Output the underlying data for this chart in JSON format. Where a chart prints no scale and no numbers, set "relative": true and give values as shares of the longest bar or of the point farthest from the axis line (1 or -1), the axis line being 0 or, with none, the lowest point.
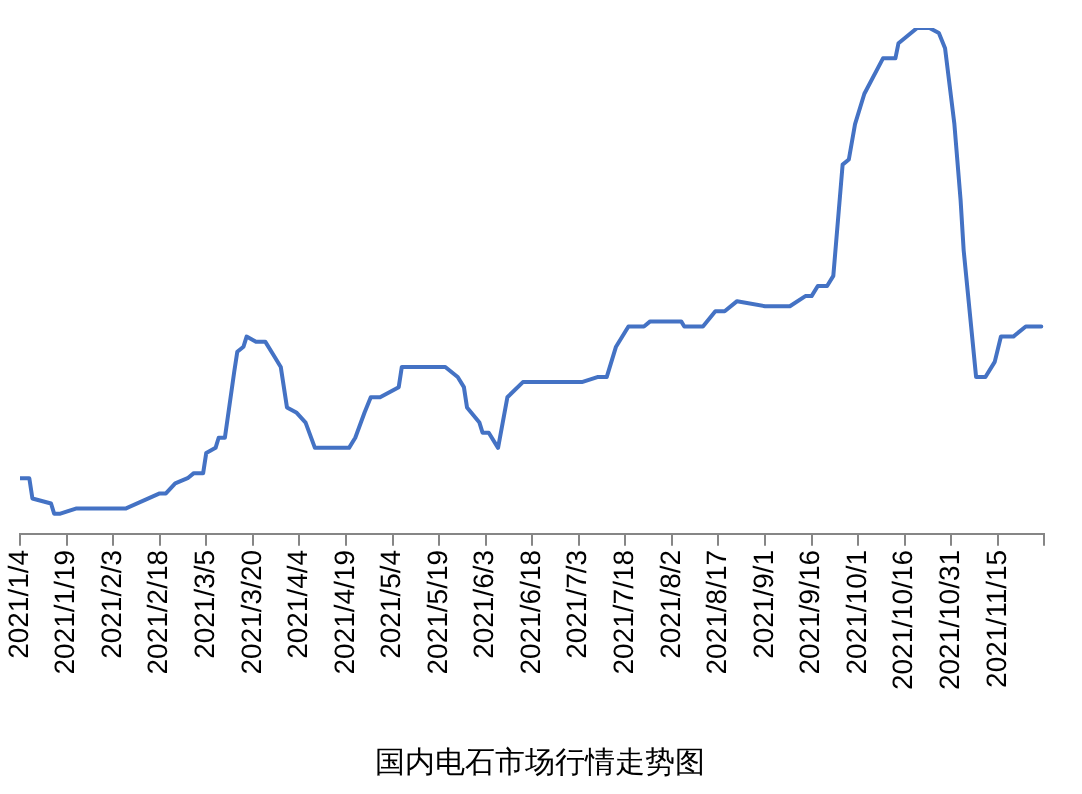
{
  "chart_data": {
    "type": "line",
    "title": "国内电石市场行情走势图",
    "relative": true,
    "color": "#4472c4",
    "marker": "none",
    "line_style": "solid",
    "grid": false,
    "legend": false,
    "x": [
      "2021-01-04",
      "2021-01-07",
      "2021-01-08",
      "2021-01-14",
      "2021-01-15",
      "2021-01-17",
      "2021-01-22",
      "2021-01-28",
      "2021-01-29",
      "2021-02-07",
      "2021-02-18",
      "2021-02-20",
      "2021-02-23",
      "2021-02-27",
      "2021-03-01",
      "2021-03-04",
      "2021-03-05",
      "2021-03-08",
      "2021-03-09",
      "2021-03-11",
      "2021-03-14",
      "2021-03-15",
      "2021-03-17",
      "2021-03-18",
      "2021-03-21",
      "2021-03-24",
      "2021-03-27",
      "2021-03-29",
      "2021-03-31",
      "2021-04-03",
      "2021-04-06",
      "2021-04-09",
      "2021-04-13",
      "2021-04-20",
      "2021-04-22",
      "2021-04-25",
      "2021-04-27",
      "2021-04-30",
      "2021-05-06",
      "2021-05-07",
      "2021-05-21",
      "2021-05-25",
      "2021-05-27",
      "2021-05-28",
      "2021-06-01",
      "2021-06-02",
      "2021-06-04",
      "2021-06-07",
      "2021-06-10",
      "2021-06-15",
      "2021-07-04",
      "2021-07-09",
      "2021-07-12",
      "2021-07-15",
      "2021-07-19",
      "2021-07-24",
      "2021-07-26",
      "2021-08-05",
      "2021-08-06",
      "2021-08-12",
      "2021-08-16",
      "2021-08-19",
      "2021-08-23",
      "2021-09-01",
      "2021-09-09",
      "2021-09-14",
      "2021-09-16",
      "2021-09-18",
      "2021-09-21",
      "2021-09-23",
      "2021-09-26",
      "2021-09-28",
      "2021-09-30",
      "2021-10-03",
      "2021-10-09",
      "2021-10-13",
      "2021-10-14",
      "2021-10-20",
      "2021-10-24",
      "2021-10-27",
      "2021-10-29",
      "2021-11-01",
      "2021-11-03",
      "2021-11-04",
      "2021-11-08",
      "2021-11-11",
      "2021-11-14",
      "2021-11-16",
      "2021-11-20",
      "2021-11-24",
      "2021-11-29"
    ],
    "values": [
      0.11,
      0.11,
      0.07,
      0.06,
      0.04,
      0.04,
      0.05,
      0.05,
      0.05,
      0.05,
      0.08,
      0.08,
      0.1,
      0.11,
      0.12,
      0.12,
      0.16,
      0.17,
      0.19,
      0.19,
      0.32,
      0.36,
      0.37,
      0.39,
      0.38,
      0.38,
      0.35,
      0.33,
      0.25,
      0.24,
      0.22,
      0.17,
      0.17,
      0.17,
      0.19,
      0.24,
      0.27,
      0.27,
      0.29,
      0.33,
      0.33,
      0.31,
      0.29,
      0.25,
      0.22,
      0.2,
      0.2,
      0.17,
      0.27,
      0.3,
      0.3,
      0.31,
      0.31,
      0.37,
      0.41,
      0.41,
      0.42,
      0.42,
      0.41,
      0.41,
      0.44,
      0.44,
      0.46,
      0.45,
      0.45,
      0.47,
      0.47,
      0.49,
      0.49,
      0.51,
      0.73,
      0.74,
      0.81,
      0.87,
      0.94,
      0.94,
      0.97,
      1.0,
      1.0,
      0.99,
      0.96,
      0.81,
      0.66,
      0.56,
      0.31,
      0.31,
      0.34,
      0.39,
      0.39,
      0.41,
      0.41
    ],
    "xlim": [
      "2021-01-04",
      "2021-11-30"
    ],
    "xticks": [
      {
        "value": "2021-01-04",
        "label": "2021/1/4"
      },
      {
        "value": "2021-01-19",
        "label": "2021/1/19"
      },
      {
        "value": "2021-02-03",
        "label": "2021/2/3"
      },
      {
        "value": "2021-02-18",
        "label": "2021/2/18"
      },
      {
        "value": "2021-03-05",
        "label": "2021/3/5"
      },
      {
        "value": "2021-03-20",
        "label": "2021/3/20"
      },
      {
        "value": "2021-04-04",
        "label": "2021/4/4"
      },
      {
        "value": "2021-04-19",
        "label": "2021/4/19"
      },
      {
        "value": "2021-05-04",
        "label": "2021/5/4"
      },
      {
        "value": "2021-05-19",
        "label": "2021/5/19"
      },
      {
        "value": "2021-06-03",
        "label": "2021/6/3"
      },
      {
        "value": "2021-06-18",
        "label": "2021/6/18"
      },
      {
        "value": "2021-07-03",
        "label": "2021/7/3"
      },
      {
        "value": "2021-07-18",
        "label": "2021/7/18"
      },
      {
        "value": "2021-08-02",
        "label": "2021/8/2"
      },
      {
        "value": "2021-08-17",
        "label": "2021/8/17"
      },
      {
        "value": "2021-09-01",
        "label": "2021/9/1"
      },
      {
        "value": "2021-09-16",
        "label": "2021/9/16"
      },
      {
        "value": "2021-10-01",
        "label": "2021/10/1"
      },
      {
        "value": "2021-10-16",
        "label": "2021/10/16"
      },
      {
        "value": "2021-10-31",
        "label": "2021/10/31"
      },
      {
        "value": "2021-11-15",
        "label": "2021/11/15"
      },
      {
        "value": "2021-11-30",
        "label": null
      }
    ]
  }
}
